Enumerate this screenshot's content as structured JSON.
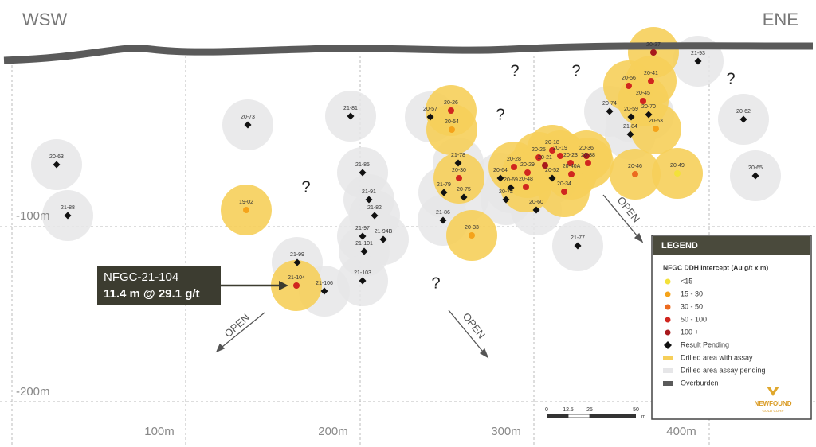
{
  "header": {
    "left": "WSW",
    "right": "ENE"
  },
  "axes": {
    "depth_labels": [
      "-100m",
      "-200m"
    ],
    "distance_labels": [
      "100m",
      "200m",
      "300m",
      "400m"
    ]
  },
  "callout": {
    "hole": "NFGC-21-104",
    "intercept": "11.4 m @ 29.1 g/t"
  },
  "open_labels": [
    "OPEN",
    "OPEN",
    "OPEN"
  ],
  "unknowns": [
    "?",
    "?",
    "?",
    "?",
    "?",
    "?"
  ],
  "holes": [
    "20-63",
    "21-88",
    "20-73",
    "19-02",
    "21-99",
    "21-104",
    "21-106",
    "21-81",
    "21-85",
    "21-91",
    "21-82",
    "21-97",
    "21-101",
    "21-94B",
    "21-103",
    "20-57",
    "20-26",
    "20-54",
    "21-78",
    "20-30",
    "21-79",
    "20-75",
    "21-86",
    "20-33",
    "20-28",
    "20-64",
    "20-29",
    "20-69",
    "20-72",
    "20-48",
    "20-60",
    "20-25",
    "20-18",
    "20-19",
    "20-21",
    "20-52",
    "20-23",
    "20-36",
    "20-38",
    "20-40A",
    "20-34",
    "20-74",
    "20-59",
    "20-70",
    "21-84",
    "20-53",
    "20-56",
    "20-41",
    "20-45",
    "20-37",
    "21-93",
    "20-62",
    "20-65",
    "20-46",
    "20-49",
    "21-77"
  ],
  "legend": {
    "title": "LEGEND",
    "subtitle": "NFGC DDH Intercept (Au g/t x m)",
    "grades": [
      "<15",
      "15 - 30",
      "30 - 50",
      "50 - 100",
      "100 +"
    ],
    "pending": "Result Pending",
    "assay_area": "Drilled area with assay",
    "pending_area": "Drilled area assay pending",
    "overburden": "Overburden"
  },
  "scale_bar": {
    "ticks": [
      "0",
      "12.5",
      "25",
      "50"
    ],
    "unit": "m"
  },
  "logo": {
    "name": "NEWFOUND",
    "subtitle": "GOLD CORP"
  }
}
